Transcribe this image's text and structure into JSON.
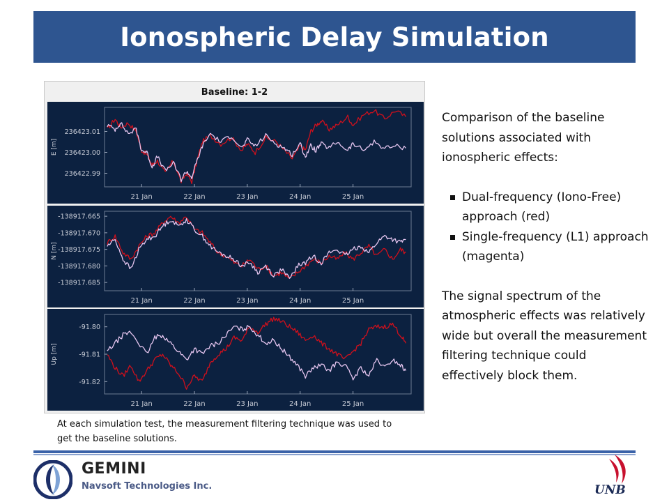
{
  "header": {
    "title": "Ionospheric Delay Simulation"
  },
  "figure": {
    "panel_title": "Baseline: 1-2",
    "caption": "At each simulation test, the measurement filtering technique was used to get the baseline solutions."
  },
  "description": {
    "intro": "Comparison of the baseline solutions associated with ionospheric effects:",
    "bullets": [
      "Dual-frequency (Iono-Free) approach (red)",
      "Single-frequency (L1) approach (magenta)"
    ],
    "conclusion": "The signal spectrum of the atmospheric effects was relatively wide but overall the measurement filtering technique could effectively block them."
  },
  "footer": {
    "company": "GEMINI",
    "company_sub": "Navsoft Technologies Inc.",
    "university": "UNB"
  },
  "colors": {
    "title_bar": "#2e5590",
    "plot_background": "#0c2140",
    "dual_frequency": "#d0101c",
    "single_frequency": "#e6c6f0",
    "axis_text": "#c8ccd6",
    "footer_blue": "#3a62a8"
  },
  "icons": {
    "company_logo": "gemini-logo-icon",
    "university_logo": "unb-logo-icon"
  },
  "chart_data": [
    {
      "type": "line",
      "ylabel": "E [m]",
      "x_unit": "day of January",
      "xticks": [
        "21 Jan",
        "22 Jan",
        "23 Jan",
        "24 Jan",
        "25 Jan"
      ],
      "xtick_values": [
        21,
        22,
        23,
        24,
        25
      ],
      "xlim": [
        20.3,
        26.1
      ],
      "yticks": [
        "236423.01",
        "236423.00",
        "236422.99"
      ],
      "ytick_values": [
        236423.01,
        236423.0,
        236422.99
      ],
      "ylim": [
        236422.9835,
        236423.0215
      ],
      "series": [
        {
          "name": "Dual-frequency (Iono-Free)",
          "color": "#d0101c",
          "x": [
            20.35,
            20.5,
            20.6,
            20.75,
            20.9,
            21.0,
            21.1,
            21.2,
            21.3,
            21.45,
            21.6,
            21.75,
            21.85,
            21.95,
            22.05,
            22.15,
            22.3,
            22.5,
            22.7,
            22.9,
            23.0,
            23.15,
            23.35,
            23.55,
            23.7,
            23.85,
            24.0,
            24.1,
            24.2,
            24.3,
            24.4,
            24.55,
            24.7,
            24.9,
            25.0,
            25.2,
            25.4,
            25.6,
            25.8,
            26.0
          ],
          "y": [
            236423.011,
            236423.016,
            236423.012,
            236423.014,
            236423.01,
            236423.001,
            236422.999,
            236422.994,
            236422.996,
            236422.99,
            236422.996,
            236422.986,
            236422.99,
            236422.986,
            236422.996,
            236423.005,
            236423.008,
            236423.004,
            236423.007,
            236423.001,
            236423.004,
            236423.0,
            236423.007,
            236423.005,
            236423.001,
            236422.997,
            236423.003,
            236423.001,
            236423.01,
            236423.013,
            236423.015,
            236423.011,
            236423.013,
            236423.017,
            236423.013,
            236423.018,
            236423.02,
            236423.016,
            236423.02,
            236423.017
          ]
        },
        {
          "name": "Single-frequency (L1)",
          "color": "#e6c6f0",
          "x": [
            20.35,
            20.5,
            20.6,
            20.75,
            20.9,
            21.0,
            21.1,
            21.2,
            21.3,
            21.45,
            21.6,
            21.75,
            21.85,
            21.95,
            22.05,
            22.15,
            22.3,
            22.5,
            22.7,
            22.9,
            23.0,
            23.15,
            23.35,
            23.55,
            23.7,
            23.85,
            24.0,
            24.1,
            24.2,
            24.3,
            24.4,
            24.55,
            24.7,
            24.9,
            25.0,
            25.2,
            25.4,
            25.6,
            25.8,
            26.0
          ],
          "y": [
            236423.013,
            236423.011,
            236423.014,
            236423.009,
            236423.011,
            236423.001,
            236423.0,
            236422.993,
            236422.998,
            236422.991,
            236422.995,
            236422.987,
            236422.991,
            236422.988,
            236422.996,
            236423.003,
            236423.009,
            236423.005,
            236423.008,
            236423.002,
            236423.006,
            236423.003,
            236423.008,
            236423.004,
            236423.002,
            236422.999,
            236423.004,
            236422.998,
            236423.003,
            236423.001,
            236423.004,
            236423.002,
            236423.005,
            236423.001,
            236423.004,
            236423.001,
            236423.005,
            236423.002,
            236423.003,
            236423.002
          ]
        }
      ]
    },
    {
      "type": "line",
      "ylabel": "N [m]",
      "x_unit": "day of January",
      "xticks": [
        "21 Jan",
        "22 Jan",
        "23 Jan",
        "24 Jan",
        "25 Jan"
      ],
      "xtick_values": [
        21,
        22,
        23,
        24,
        25
      ],
      "xlim": [
        20.3,
        26.1
      ],
      "yticks": [
        "-138917.665",
        "-138917.670",
        "-138917.675",
        "-138917.680",
        "-138917.685"
      ],
      "ytick_values": [
        -138917.665,
        -138917.67,
        -138917.675,
        -138917.68,
        -138917.685
      ],
      "ylim": [
        -138917.6875,
        -138917.6635
      ],
      "series": [
        {
          "name": "Dual-frequency (Iono-Free)",
          "color": "#d0101c",
          "x": [
            20.35,
            20.5,
            20.65,
            20.8,
            20.95,
            21.1,
            21.25,
            21.4,
            21.55,
            21.7,
            21.85,
            22.0,
            22.15,
            22.3,
            22.45,
            22.6,
            22.75,
            22.9,
            23.05,
            23.2,
            23.35,
            23.5,
            23.65,
            23.8,
            23.95,
            24.1,
            24.25,
            24.4,
            24.55,
            24.7,
            24.85,
            25.0,
            25.15,
            25.3,
            25.45,
            25.6,
            25.75,
            25.9,
            26.0
          ],
          "y": [
            -138917.673,
            -138917.671,
            -138917.676,
            -138917.678,
            -138917.674,
            -138917.671,
            -138917.67,
            -138917.667,
            -138917.665,
            -138917.667,
            -138917.665,
            -138917.669,
            -138917.67,
            -138917.673,
            -138917.676,
            -138917.677,
            -138917.679,
            -138917.68,
            -138917.678,
            -138917.681,
            -138917.68,
            -138917.683,
            -138917.682,
            -138917.684,
            -138917.682,
            -138917.68,
            -138917.678,
            -138917.679,
            -138917.677,
            -138917.678,
            -138917.676,
            -138917.678,
            -138917.676,
            -138917.674,
            -138917.677,
            -138917.675,
            -138917.678,
            -138917.675,
            -138917.676
          ]
        },
        {
          "name": "Single-frequency (L1)",
          "color": "#e6c6f0",
          "x": [
            20.35,
            20.5,
            20.65,
            20.8,
            20.95,
            21.1,
            21.25,
            21.4,
            21.55,
            21.7,
            21.85,
            22.0,
            22.15,
            22.3,
            22.45,
            22.6,
            22.75,
            22.9,
            23.05,
            23.2,
            23.35,
            23.5,
            23.65,
            23.8,
            23.95,
            24.1,
            24.25,
            24.4,
            24.55,
            24.7,
            24.85,
            25.0,
            25.15,
            25.3,
            25.45,
            25.6,
            25.75,
            25.9,
            26.0
          ],
          "y": [
            -138917.674,
            -138917.672,
            -138917.678,
            -138917.681,
            -138917.675,
            -138917.672,
            -138917.671,
            -138917.668,
            -138917.666,
            -138917.668,
            -138917.666,
            -138917.669,
            -138917.671,
            -138917.674,
            -138917.676,
            -138917.677,
            -138917.678,
            -138917.68,
            -138917.679,
            -138917.682,
            -138917.68,
            -138917.683,
            -138917.681,
            -138917.684,
            -138917.68,
            -138917.679,
            -138917.677,
            -138917.679,
            -138917.676,
            -138917.675,
            -138917.677,
            -138917.675,
            -138917.674,
            -138917.676,
            -138917.673,
            -138917.671,
            -138917.672,
            -138917.673,
            -138917.672
          ]
        }
      ]
    },
    {
      "type": "line",
      "ylabel": "Up [m]",
      "x_unit": "day of January",
      "xticks": [
        "21 Jan",
        "22 Jan",
        "23 Jan",
        "24 Jan",
        "25 Jan"
      ],
      "xtick_values": [
        21,
        22,
        23,
        24,
        25
      ],
      "xlim": [
        20.3,
        26.1
      ],
      "yticks": [
        "-91.80",
        "-91.81",
        "-91.82"
      ],
      "ytick_values": [
        -91.8,
        -91.81,
        -91.82
      ],
      "ylim": [
        -91.8245,
        -91.7955
      ],
      "series": [
        {
          "name": "Dual-frequency (Iono-Free)",
          "color": "#d0101c",
          "x": [
            20.35,
            20.5,
            20.65,
            20.8,
            20.95,
            21.1,
            21.25,
            21.4,
            21.55,
            21.7,
            21.85,
            22.0,
            22.15,
            22.3,
            22.45,
            22.6,
            22.75,
            22.9,
            23.05,
            23.2,
            23.35,
            23.5,
            23.65,
            23.8,
            23.95,
            24.1,
            24.25,
            24.4,
            24.55,
            24.7,
            24.85,
            25.0,
            25.15,
            25.3,
            25.45,
            25.6,
            25.75,
            25.9,
            26.0
          ],
          "y": [
            -91.81,
            -91.815,
            -91.818,
            -91.814,
            -91.82,
            -91.816,
            -91.812,
            -91.81,
            -91.814,
            -91.817,
            -91.822,
            -91.818,
            -91.82,
            -91.813,
            -91.81,
            -91.808,
            -91.804,
            -91.805,
            -91.8,
            -91.802,
            -91.799,
            -91.797,
            -91.798,
            -91.8,
            -91.802,
            -91.805,
            -91.803,
            -91.806,
            -91.808,
            -91.81,
            -91.812,
            -91.809,
            -91.806,
            -91.801,
            -91.8,
            -91.8,
            -91.799,
            -91.803,
            -91.806
          ]
        },
        {
          "name": "Single-frequency (L1)",
          "color": "#e6c6f0",
          "x": [
            20.35,
            20.5,
            20.65,
            20.8,
            20.95,
            21.1,
            21.25,
            21.4,
            21.55,
            21.7,
            21.85,
            22.0,
            22.15,
            22.3,
            22.45,
            22.6,
            22.75,
            22.9,
            23.05,
            23.2,
            23.35,
            23.5,
            23.65,
            23.8,
            23.95,
            24.1,
            24.25,
            24.4,
            24.55,
            24.7,
            24.85,
            25.0,
            25.15,
            25.3,
            25.45,
            25.6,
            25.75,
            25.9,
            26.0
          ],
          "y": [
            -91.809,
            -91.806,
            -91.803,
            -91.802,
            -91.806,
            -91.81,
            -91.804,
            -91.803,
            -91.806,
            -91.809,
            -91.812,
            -91.808,
            -91.81,
            -91.807,
            -91.806,
            -91.803,
            -91.8,
            -91.801,
            -91.8,
            -91.803,
            -91.806,
            -91.805,
            -91.808,
            -91.811,
            -91.814,
            -91.818,
            -91.815,
            -91.814,
            -91.816,
            -91.813,
            -91.814,
            -91.819,
            -91.815,
            -91.818,
            -91.812,
            -91.815,
            -91.812,
            -91.814,
            -91.816
          ]
        }
      ]
    }
  ]
}
